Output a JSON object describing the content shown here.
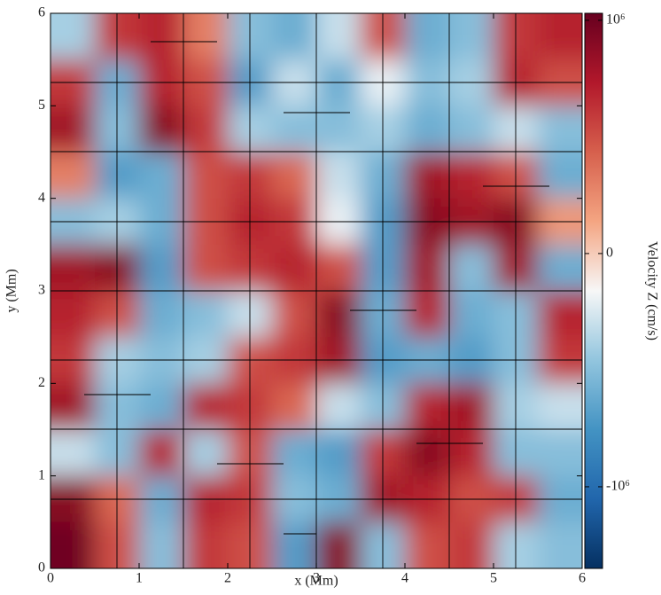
{
  "chart_data": {
    "type": "heatmap",
    "xlabel": "x  (Mm)",
    "ylabel": "y  (Mm)",
    "colorbar_label": "Velocity Z  (cm/s)",
    "x": [
      0.25,
      0.75,
      1.25,
      1.75,
      2.25,
      2.75,
      3.25,
      3.75,
      4.25,
      4.75,
      5.25,
      5.75
    ],
    "y": [
      5.75,
      5.25,
      4.75,
      4.25,
      3.75,
      3.25,
      2.75,
      2.25,
      1.75,
      1.25,
      0.75,
      0.25
    ],
    "values": [
      [
        -400000,
        600000,
        700000,
        300000,
        -500000,
        -600000,
        -300000,
        500000,
        -600000,
        -500000,
        600000,
        700000
      ],
      [
        600000,
        -600000,
        700000,
        500000,
        -700000,
        -300000,
        -600000,
        -200000,
        -500000,
        -400000,
        700000,
        500000
      ],
      [
        800000,
        -500000,
        900000,
        600000,
        -400000,
        -500000,
        -500000,
        -400000,
        -600000,
        -500000,
        -300000,
        -500000
      ],
      [
        300000,
        -700000,
        -600000,
        500000,
        600000,
        400000,
        -300000,
        -600000,
        800000,
        700000,
        500000,
        -600000
      ],
      [
        -500000,
        -400000,
        -600000,
        500000,
        700000,
        600000,
        -200000,
        -700000,
        900000,
        800000,
        900000,
        200000
      ],
      [
        800000,
        900000,
        -700000,
        500000,
        600000,
        700000,
        500000,
        -700000,
        800000,
        -500000,
        800000,
        -600000
      ],
      [
        700000,
        500000,
        -600000,
        -500000,
        -300000,
        500000,
        900000,
        -600000,
        700000,
        -600000,
        -500000,
        700000
      ],
      [
        600000,
        -400000,
        -500000,
        -400000,
        500000,
        600000,
        800000,
        -700000,
        -600000,
        -700000,
        -500000,
        600000
      ],
      [
        800000,
        -500000,
        -600000,
        700000,
        600000,
        400000,
        -300000,
        -500000,
        700000,
        800000,
        -400000,
        -300000
      ],
      [
        -300000,
        -500000,
        700000,
        -400000,
        500000,
        -600000,
        -700000,
        600000,
        900000,
        700000,
        -500000,
        -500000
      ],
      [
        900000,
        400000,
        -600000,
        700000,
        600000,
        -500000,
        -600000,
        800000,
        700000,
        500000,
        600000,
        -600000
      ],
      [
        1000000,
        500000,
        -500000,
        600000,
        500000,
        -700000,
        900000,
        -500000,
        500000,
        600000,
        -400000,
        -500000
      ]
    ],
    "xlim": [
      0,
      6
    ],
    "ylim": [
      0,
      6
    ],
    "xticks": [
      0,
      1,
      2,
      3,
      4,
      5,
      6
    ],
    "yticks": [
      0,
      1,
      2,
      3,
      4,
      5,
      6
    ],
    "clim": [
      -1350000,
      1030000
    ],
    "cticks": [
      {
        "value": 1000000,
        "label": "10⁶"
      },
      0,
      {
        "value": -1000000,
        "label": "-10⁶"
      }
    ],
    "colorscale": [
      "#053061",
      "#2166ac",
      "#4393c3",
      "#92c5de",
      "#f7f7f7",
      "#f4a582",
      "#d6604d",
      "#b2182b",
      "#67001f"
    ]
  }
}
